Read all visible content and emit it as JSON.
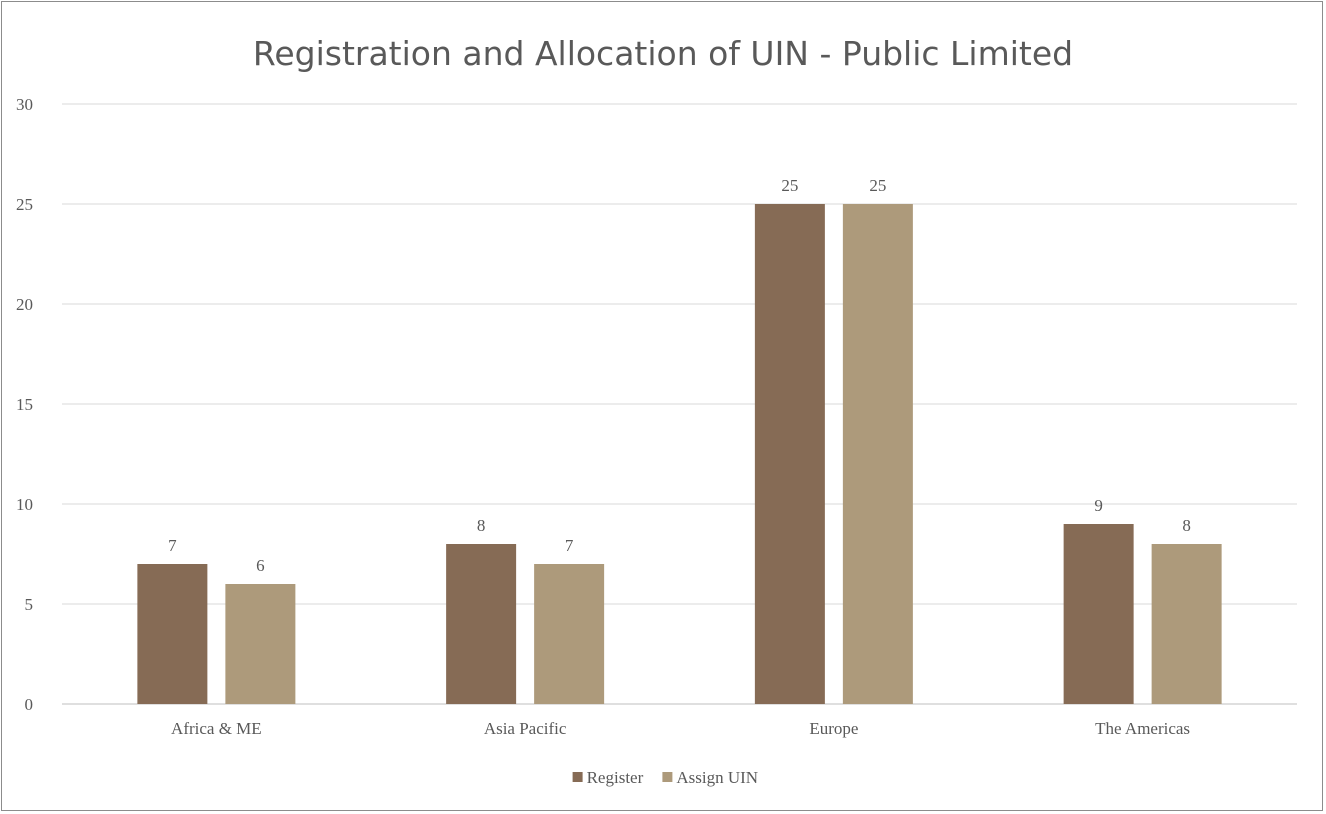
{
  "chart_data": {
    "type": "bar",
    "title": "Registration and Allocation of UIN - Public Limited",
    "xlabel": "",
    "ylabel": "",
    "categories": [
      "Africa & ME",
      "Asia Pacific",
      "Europe",
      "The Americas"
    ],
    "series": [
      {
        "name": "Register",
        "values": [
          7,
          8,
          25,
          9
        ],
        "color": "#866b55"
      },
      {
        "name": "Assign UIN",
        "values": [
          6,
          7,
          25,
          8
        ],
        "color": "#ad9a7b"
      }
    ],
    "ylim": [
      0,
      30
    ],
    "yticks": [
      0,
      5,
      10,
      15,
      20,
      25,
      30
    ],
    "grid": true,
    "legend": "bottom",
    "data_labels": true
  }
}
